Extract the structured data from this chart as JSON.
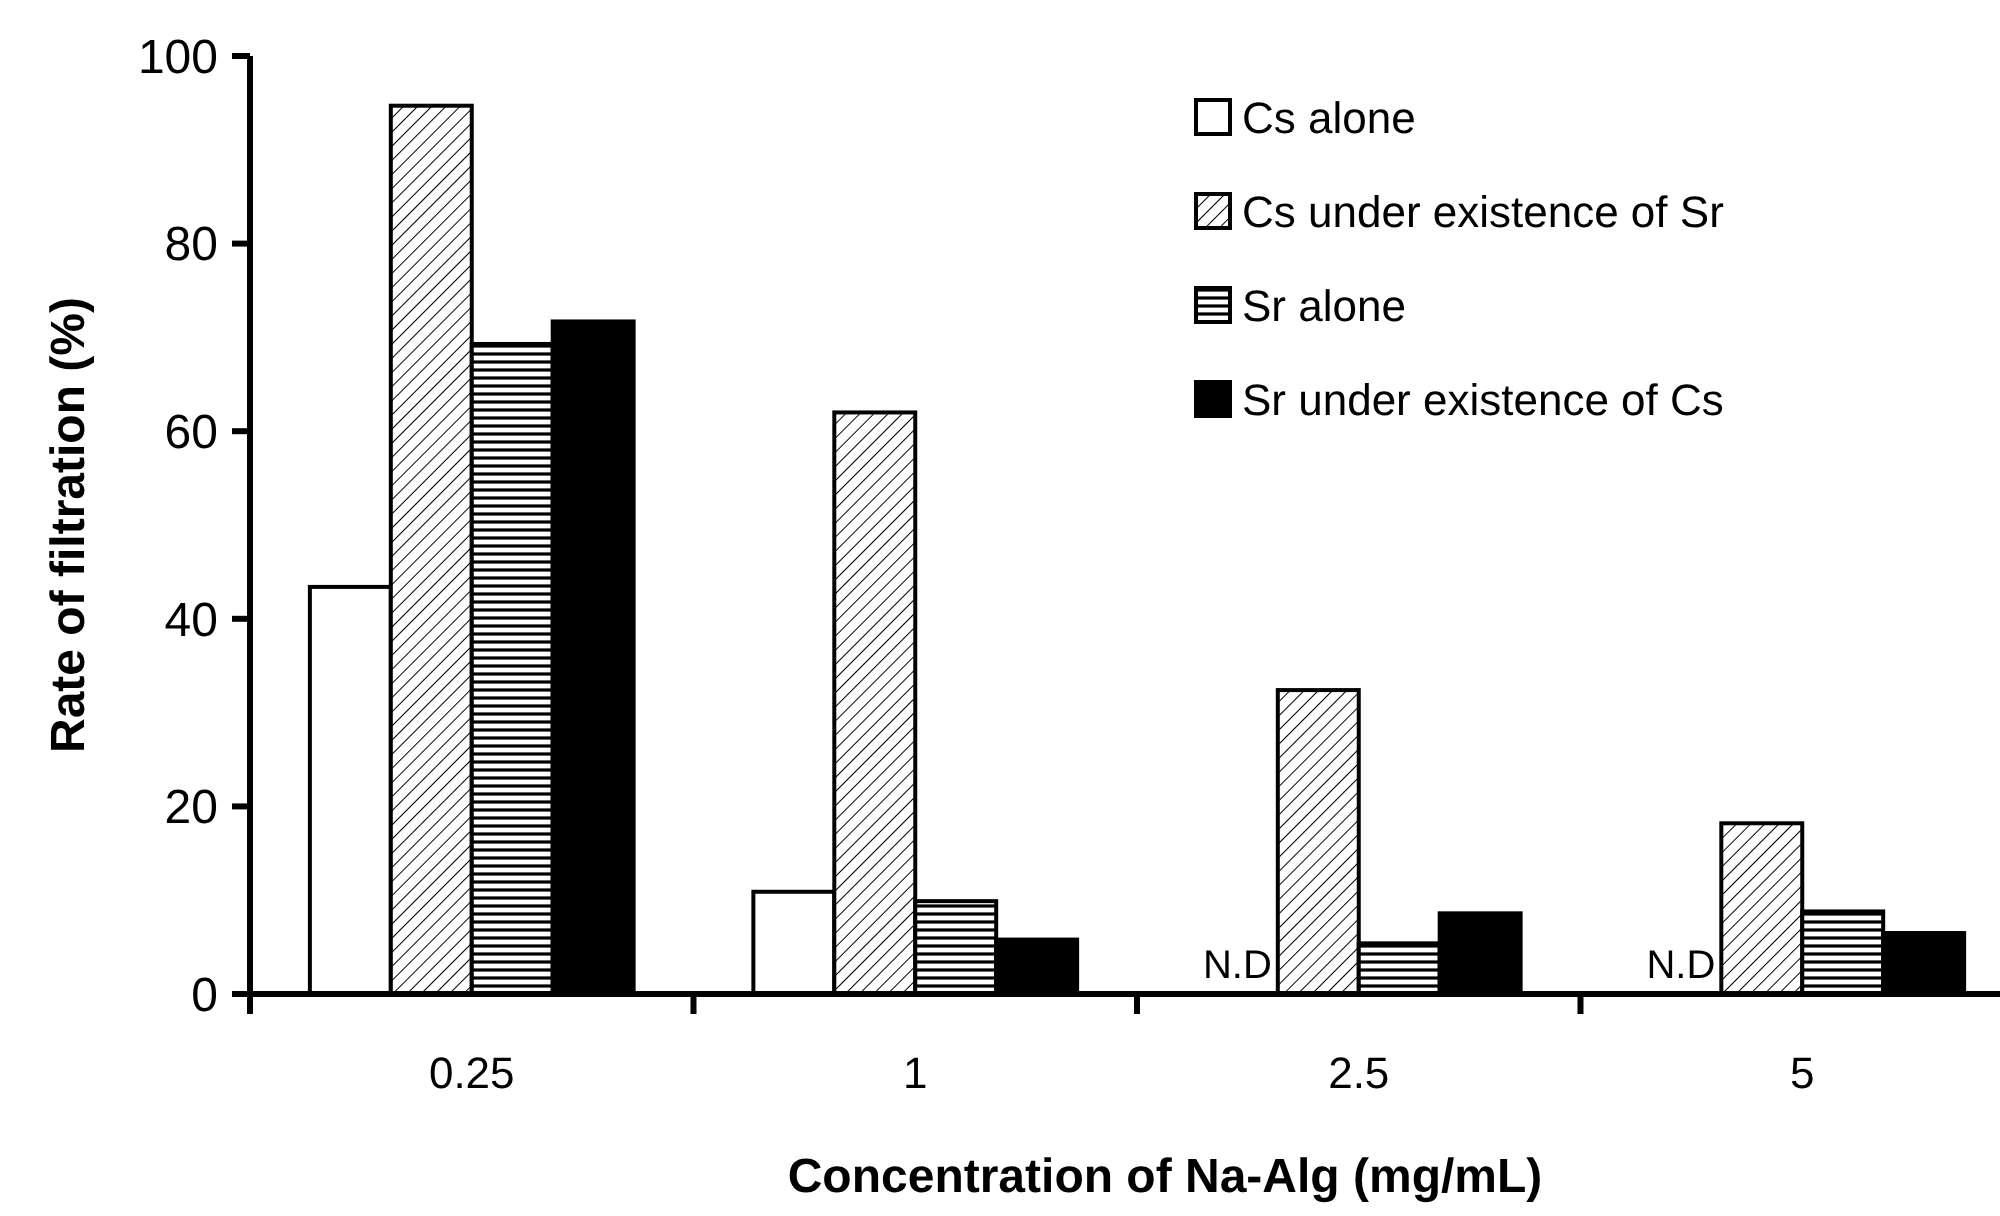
{
  "chart_data": {
    "type": "bar",
    "xlabel": "Concentration of Na-Alg (mg/mL)",
    "ylabel": "Rate of filtration (%)",
    "categories": [
      "0.25",
      "1",
      "2.5",
      "5"
    ],
    "series": [
      {
        "name": "Cs alone",
        "color": "#ffffff",
        "values": [
          43.4,
          10.9,
          null,
          null
        ]
      },
      {
        "name": "Cs under existence of Sr",
        "color": "#000000",
        "values": [
          94.7,
          62.0,
          32.4,
          18.2
        ]
      },
      {
        "name": "Sr alone",
        "color": "#000000",
        "values": [
          69.3,
          9.9,
          5.4,
          8.8
        ]
      },
      {
        "name": "Sr under existence of Cs",
        "color": "#000000",
        "values": [
          71.7,
          5.8,
          8.6,
          6.5
        ]
      }
    ],
    "ylim": [
      0,
      100
    ],
    "yticks": [
      0,
      20,
      40,
      60,
      80,
      100
    ],
    "legend": "top right",
    "annotations": [
      {
        "text": "N.D",
        "x": "2.5",
        "y": 0
      },
      {
        "text": "N.D",
        "x": "5",
        "y": 0
      }
    ]
  }
}
